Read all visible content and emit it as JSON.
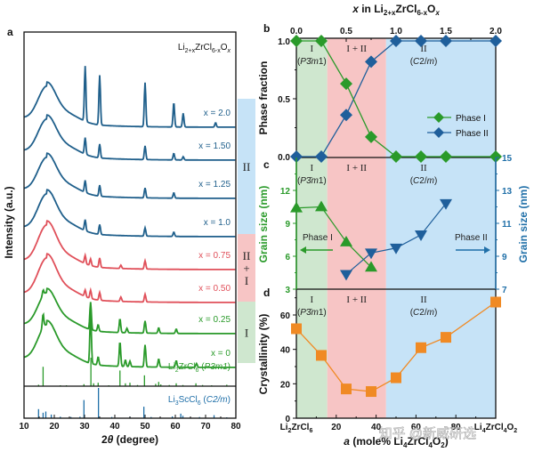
{
  "chart_data": [
    {
      "panel": "a",
      "type": "line",
      "title": "Li2+xZrCl6-xOx",
      "xlabel": "2θ (degree)",
      "ylabel": "Intensity (a.u.)",
      "xlim": [
        10,
        80
      ],
      "xticks": [
        10,
        20,
        30,
        40,
        50,
        60,
        70,
        80
      ],
      "series": [
        {
          "name": "x = 2.0",
          "color": "#1f5f8b",
          "phase": "II",
          "peaks": [
            [
              30.2,
              1.0
            ],
            [
              35.0,
              0.9
            ],
            [
              50.0,
              0.8
            ],
            [
              59.5,
              0.45
            ],
            [
              62.6,
              0.25
            ],
            [
              73.3,
              0.08
            ]
          ]
        },
        {
          "name": "x = 1.50",
          "color": "#1f5f8b",
          "phase": "II",
          "peaks": [
            [
              30.2,
              0.3
            ],
            [
              35.0,
              0.25
            ],
            [
              50.0,
              0.25
            ],
            [
              59.5,
              0.12
            ],
            [
              62.6,
              0.06
            ]
          ]
        },
        {
          "name": "x = 1.25",
          "color": "#1f5f8b",
          "phase": "II",
          "peaks": [
            [
              30.2,
              0.22
            ],
            [
              35.0,
              0.2
            ],
            [
              50.0,
              0.18
            ],
            [
              59.5,
              0.1
            ]
          ]
        },
        {
          "name": "x = 1.0",
          "color": "#1f5f8b",
          "phase": "II",
          "peaks": [
            [
              30.2,
              0.2
            ],
            [
              35.0,
              0.18
            ],
            [
              50.0,
              0.15
            ],
            [
              59.5,
              0.08
            ]
          ]
        },
        {
          "name": "x = 0.75",
          "color": "#e0505a",
          "phase": "II + I",
          "peaks": [
            [
              30.2,
              0.15
            ],
            [
              32.0,
              0.12
            ],
            [
              35.0,
              0.17
            ],
            [
              42.0,
              0.06
            ],
            [
              50.0,
              0.15
            ]
          ]
        },
        {
          "name": "x = 0.50",
          "color": "#e0505a",
          "phase": "II + I",
          "peaks": [
            [
              30.2,
              0.12
            ],
            [
              32.0,
              0.15
            ],
            [
              35.0,
              0.14
            ],
            [
              42.0,
              0.08
            ],
            [
              50.0,
              0.14
            ]
          ]
        },
        {
          "name": "x = 0.25",
          "color": "#2a9a2a",
          "phase": "I",
          "peaks": [
            [
              16.3,
              0.1
            ],
            [
              32.0,
              0.5
            ],
            [
              34.5,
              0.12
            ],
            [
              41.7,
              0.25
            ],
            [
              44.0,
              0.08
            ],
            [
              50.0,
              0.22
            ],
            [
              54.5,
              0.1
            ],
            [
              60.3,
              0.08
            ]
          ]
        },
        {
          "name": "x = 0",
          "color": "#2a9a2a",
          "phase": "I",
          "peaks": [
            [
              16.3,
              0.25
            ],
            [
              32.0,
              0.9
            ],
            [
              34.5,
              0.15
            ],
            [
              41.7,
              0.45
            ],
            [
              43.5,
              0.12
            ],
            [
              45.0,
              0.1
            ],
            [
              50.0,
              0.4
            ],
            [
              54.5,
              0.15
            ],
            [
              60.3,
              0.12
            ],
            [
              67.0,
              0.07
            ]
          ]
        }
      ],
      "references": [
        {
          "name": "Li2ZrCl6 (P-3m1)",
          "label_main": "Li",
          "label_sub1": "2",
          "label_mid": "ZrCl",
          "label_sub2": "6",
          "label_space": "P3m1",
          "color": "#2a9a2a",
          "sticks": [
            [
              14.8,
              0.05
            ],
            [
              16.3,
              0.68
            ],
            [
              22,
              0.03
            ],
            [
              24,
              0.03
            ],
            [
              29.8,
              0.07
            ],
            [
              32.1,
              1.0
            ],
            [
              33.0,
              0.1
            ],
            [
              34.5,
              0.12
            ],
            [
              38,
              0.03
            ],
            [
              41.7,
              0.55
            ],
            [
              43.5,
              0.1
            ],
            [
              45,
              0.12
            ],
            [
              47.5,
              0.04
            ],
            [
              49.8,
              0.38
            ],
            [
              53.5,
              0.08
            ],
            [
              54.5,
              0.15
            ],
            [
              55.2,
              0.06
            ],
            [
              58,
              0.04
            ],
            [
              60.3,
              0.1
            ],
            [
              62.5,
              0.04
            ],
            [
              66.8,
              0.1
            ],
            [
              69,
              0.04
            ],
            [
              72,
              0.03
            ],
            [
              77,
              0.05
            ]
          ]
        },
        {
          "name": "Li3ScCl6 (C2/m)",
          "label_main": "Li",
          "label_sub1": "3",
          "label_mid": "ScCl",
          "label_sub2": "6",
          "label_space": "C2/m",
          "color": "#1f6fa8",
          "sticks": [
            [
              14.8,
              0.3
            ],
            [
              16.3,
              0.18
            ],
            [
              17.2,
              0.22
            ],
            [
              19.0,
              0.12
            ],
            [
              22,
              0.05
            ],
            [
              25.5,
              0.04
            ],
            [
              28.5,
              0.05
            ],
            [
              29.8,
              0.6
            ],
            [
              34.6,
              1.0
            ],
            [
              39,
              0.04
            ],
            [
              45,
              0.05
            ],
            [
              49.6,
              0.38
            ],
            [
              52,
              0.04
            ],
            [
              59,
              0.06
            ],
            [
              61.8,
              0.15
            ],
            [
              62.5,
              0.08
            ],
            [
              68,
              0.04
            ],
            [
              72.8,
              0.1
            ],
            [
              77,
              0.03
            ]
          ]
        }
      ],
      "phase_bar": [
        {
          "label": "II",
          "color": "#c6e3f7",
          "rows": [
            "x = 2.0",
            "x = 1.0"
          ]
        },
        {
          "label": "II\n+\nI",
          "color": "#f7c5c5",
          "rows": [
            "x = 0.75",
            "x = 0.50"
          ]
        },
        {
          "label": "I",
          "color": "#cfe7cf",
          "rows": [
            "x = 0.25",
            "x = 0"
          ]
        }
      ]
    },
    {
      "panel": "b",
      "type": "line",
      "top_xlabel": "x in Li2+xZrCl6-xOx",
      "ylabel": "Phase fraction",
      "xlim": [
        0,
        2.0
      ],
      "ylim": [
        0,
        1.0
      ],
      "xticks": [
        "0.0",
        "0.5",
        "1.0",
        "1.5",
        "2.0"
      ],
      "yticks": [
        "0.0",
        "0.5",
        "1.0"
      ],
      "x": [
        0,
        0.25,
        0.5,
        0.75,
        1.0,
        1.25,
        1.5,
        2.0
      ],
      "series": [
        {
          "name": "Phase I",
          "color": "#2a9a2a",
          "marker": "diamond",
          "values": [
            1.0,
            1.0,
            0.63,
            0.17,
            0,
            0,
            0,
            0
          ]
        },
        {
          "name": "Phase II",
          "color": "#1f5f9b",
          "marker": "diamond",
          "values": [
            0,
            0,
            0.36,
            0.82,
            1.0,
            1.0,
            1.0,
            1.0
          ]
        }
      ],
      "legend": "bottom-right"
    },
    {
      "panel": "c",
      "type": "line",
      "ylabel_left": "Grain size (nm)",
      "ylabel_right": "Grain size (nm)",
      "xlim": [
        0,
        2.0
      ],
      "ylim_left": [
        3,
        15
      ],
      "ylim_right": [
        7,
        15
      ],
      "yticks_left": [
        "3",
        "6",
        "9",
        "12"
      ],
      "yticks_right": [
        "7",
        "9",
        "11",
        "13",
        "15"
      ],
      "series": [
        {
          "name": "Phase I",
          "axis": "left",
          "color": "#2a9a2a",
          "marker": "triangle-up",
          "x": [
            0,
            0.25,
            0.5,
            0.75
          ],
          "values": [
            10.4,
            10.5,
            7.3,
            5.0
          ]
        },
        {
          "name": "Phase II",
          "axis": "right",
          "color": "#1f5f9b",
          "marker": "triangle-down",
          "x": [
            0.5,
            0.75,
            1.0,
            1.25,
            1.5
          ],
          "values": [
            7.9,
            9.2,
            9.5,
            10.3,
            12.2
          ]
        }
      ],
      "annotations": [
        {
          "text": "Phase I",
          "arrow": "left",
          "color": "#2a9a2a"
        },
        {
          "text": "Phase II",
          "arrow": "right",
          "color": "#1f6fa8"
        }
      ]
    },
    {
      "panel": "d",
      "type": "line",
      "ylabel": "Crystallinity (%)",
      "xlabel": "a (mole% Li4ZrCl4O2)",
      "xlim": [
        0,
        100
      ],
      "ylim": [
        0,
        75
      ],
      "yticks": [
        "0",
        "20",
        "40",
        "60"
      ],
      "xticks": [
        "Li2ZrCl6",
        "20",
        "40",
        "60",
        "80",
        "Li4ZrCl4O2"
      ],
      "series": [
        {
          "name": "Crystallinity",
          "color": "#f08a24",
          "marker": "square",
          "x": [
            0,
            12.5,
            25,
            37.5,
            50,
            62.5,
            75,
            100
          ],
          "values": [
            52,
            36.5,
            17,
            15.5,
            23.5,
            41,
            47,
            67.5
          ]
        }
      ]
    }
  ],
  "regions": [
    {
      "name": "I",
      "sub": "(P3m1)",
      "color": "#cfe7cf",
      "from": 0,
      "to": 0.31
    },
    {
      "name": "I + II",
      "sub": "",
      "color": "#f7c5c5",
      "from": 0.31,
      "to": 0.9
    },
    {
      "name": "II",
      "sub": "(C2/m)",
      "color": "#c6e3f7",
      "from": 0.9,
      "to": 2.0
    }
  ],
  "panel_letters": [
    "a",
    "b",
    "c",
    "d"
  ],
  "watermark": "知乎 @新威研选"
}
